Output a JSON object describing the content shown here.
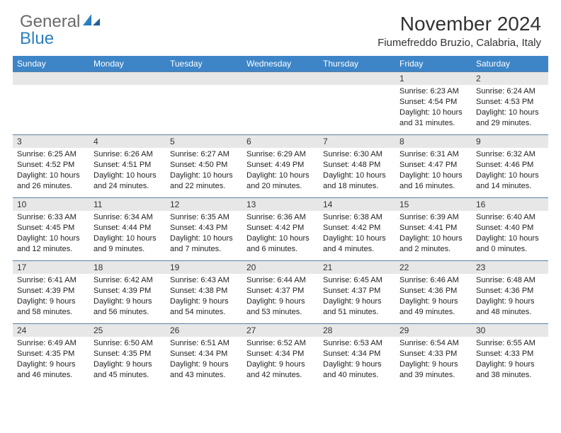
{
  "brand": {
    "part1": "General",
    "part2": "Blue"
  },
  "title": "November 2024",
  "location": "Fiumefreddo Bruzio, Calabria, Italy",
  "colors": {
    "header_bg": "#3d85c6",
    "header_text": "#ffffff",
    "daynum_bg": "#e7e7e7",
    "row_divider": "#5b7fa3",
    "logo_gray": "#6a6a6a",
    "logo_blue": "#2b7fbf"
  },
  "day_headers": [
    "Sunday",
    "Monday",
    "Tuesday",
    "Wednesday",
    "Thursday",
    "Friday",
    "Saturday"
  ],
  "weeks": [
    [
      {
        "n": "",
        "sunrise": "",
        "sunset": "",
        "daylight": ""
      },
      {
        "n": "",
        "sunrise": "",
        "sunset": "",
        "daylight": ""
      },
      {
        "n": "",
        "sunrise": "",
        "sunset": "",
        "daylight": ""
      },
      {
        "n": "",
        "sunrise": "",
        "sunset": "",
        "daylight": ""
      },
      {
        "n": "",
        "sunrise": "",
        "sunset": "",
        "daylight": ""
      },
      {
        "n": "1",
        "sunrise": "Sunrise: 6:23 AM",
        "sunset": "Sunset: 4:54 PM",
        "daylight": "Daylight: 10 hours and 31 minutes."
      },
      {
        "n": "2",
        "sunrise": "Sunrise: 6:24 AM",
        "sunset": "Sunset: 4:53 PM",
        "daylight": "Daylight: 10 hours and 29 minutes."
      }
    ],
    [
      {
        "n": "3",
        "sunrise": "Sunrise: 6:25 AM",
        "sunset": "Sunset: 4:52 PM",
        "daylight": "Daylight: 10 hours and 26 minutes."
      },
      {
        "n": "4",
        "sunrise": "Sunrise: 6:26 AM",
        "sunset": "Sunset: 4:51 PM",
        "daylight": "Daylight: 10 hours and 24 minutes."
      },
      {
        "n": "5",
        "sunrise": "Sunrise: 6:27 AM",
        "sunset": "Sunset: 4:50 PM",
        "daylight": "Daylight: 10 hours and 22 minutes."
      },
      {
        "n": "6",
        "sunrise": "Sunrise: 6:29 AM",
        "sunset": "Sunset: 4:49 PM",
        "daylight": "Daylight: 10 hours and 20 minutes."
      },
      {
        "n": "7",
        "sunrise": "Sunrise: 6:30 AM",
        "sunset": "Sunset: 4:48 PM",
        "daylight": "Daylight: 10 hours and 18 minutes."
      },
      {
        "n": "8",
        "sunrise": "Sunrise: 6:31 AM",
        "sunset": "Sunset: 4:47 PM",
        "daylight": "Daylight: 10 hours and 16 minutes."
      },
      {
        "n": "9",
        "sunrise": "Sunrise: 6:32 AM",
        "sunset": "Sunset: 4:46 PM",
        "daylight": "Daylight: 10 hours and 14 minutes."
      }
    ],
    [
      {
        "n": "10",
        "sunrise": "Sunrise: 6:33 AM",
        "sunset": "Sunset: 4:45 PM",
        "daylight": "Daylight: 10 hours and 12 minutes."
      },
      {
        "n": "11",
        "sunrise": "Sunrise: 6:34 AM",
        "sunset": "Sunset: 4:44 PM",
        "daylight": "Daylight: 10 hours and 9 minutes."
      },
      {
        "n": "12",
        "sunrise": "Sunrise: 6:35 AM",
        "sunset": "Sunset: 4:43 PM",
        "daylight": "Daylight: 10 hours and 7 minutes."
      },
      {
        "n": "13",
        "sunrise": "Sunrise: 6:36 AM",
        "sunset": "Sunset: 4:42 PM",
        "daylight": "Daylight: 10 hours and 6 minutes."
      },
      {
        "n": "14",
        "sunrise": "Sunrise: 6:38 AM",
        "sunset": "Sunset: 4:42 PM",
        "daylight": "Daylight: 10 hours and 4 minutes."
      },
      {
        "n": "15",
        "sunrise": "Sunrise: 6:39 AM",
        "sunset": "Sunset: 4:41 PM",
        "daylight": "Daylight: 10 hours and 2 minutes."
      },
      {
        "n": "16",
        "sunrise": "Sunrise: 6:40 AM",
        "sunset": "Sunset: 4:40 PM",
        "daylight": "Daylight: 10 hours and 0 minutes."
      }
    ],
    [
      {
        "n": "17",
        "sunrise": "Sunrise: 6:41 AM",
        "sunset": "Sunset: 4:39 PM",
        "daylight": "Daylight: 9 hours and 58 minutes."
      },
      {
        "n": "18",
        "sunrise": "Sunrise: 6:42 AM",
        "sunset": "Sunset: 4:39 PM",
        "daylight": "Daylight: 9 hours and 56 minutes."
      },
      {
        "n": "19",
        "sunrise": "Sunrise: 6:43 AM",
        "sunset": "Sunset: 4:38 PM",
        "daylight": "Daylight: 9 hours and 54 minutes."
      },
      {
        "n": "20",
        "sunrise": "Sunrise: 6:44 AM",
        "sunset": "Sunset: 4:37 PM",
        "daylight": "Daylight: 9 hours and 53 minutes."
      },
      {
        "n": "21",
        "sunrise": "Sunrise: 6:45 AM",
        "sunset": "Sunset: 4:37 PM",
        "daylight": "Daylight: 9 hours and 51 minutes."
      },
      {
        "n": "22",
        "sunrise": "Sunrise: 6:46 AM",
        "sunset": "Sunset: 4:36 PM",
        "daylight": "Daylight: 9 hours and 49 minutes."
      },
      {
        "n": "23",
        "sunrise": "Sunrise: 6:48 AM",
        "sunset": "Sunset: 4:36 PM",
        "daylight": "Daylight: 9 hours and 48 minutes."
      }
    ],
    [
      {
        "n": "24",
        "sunrise": "Sunrise: 6:49 AM",
        "sunset": "Sunset: 4:35 PM",
        "daylight": "Daylight: 9 hours and 46 minutes."
      },
      {
        "n": "25",
        "sunrise": "Sunrise: 6:50 AM",
        "sunset": "Sunset: 4:35 PM",
        "daylight": "Daylight: 9 hours and 45 minutes."
      },
      {
        "n": "26",
        "sunrise": "Sunrise: 6:51 AM",
        "sunset": "Sunset: 4:34 PM",
        "daylight": "Daylight: 9 hours and 43 minutes."
      },
      {
        "n": "27",
        "sunrise": "Sunrise: 6:52 AM",
        "sunset": "Sunset: 4:34 PM",
        "daylight": "Daylight: 9 hours and 42 minutes."
      },
      {
        "n": "28",
        "sunrise": "Sunrise: 6:53 AM",
        "sunset": "Sunset: 4:34 PM",
        "daylight": "Daylight: 9 hours and 40 minutes."
      },
      {
        "n": "29",
        "sunrise": "Sunrise: 6:54 AM",
        "sunset": "Sunset: 4:33 PM",
        "daylight": "Daylight: 9 hours and 39 minutes."
      },
      {
        "n": "30",
        "sunrise": "Sunrise: 6:55 AM",
        "sunset": "Sunset: 4:33 PM",
        "daylight": "Daylight: 9 hours and 38 minutes."
      }
    ]
  ]
}
